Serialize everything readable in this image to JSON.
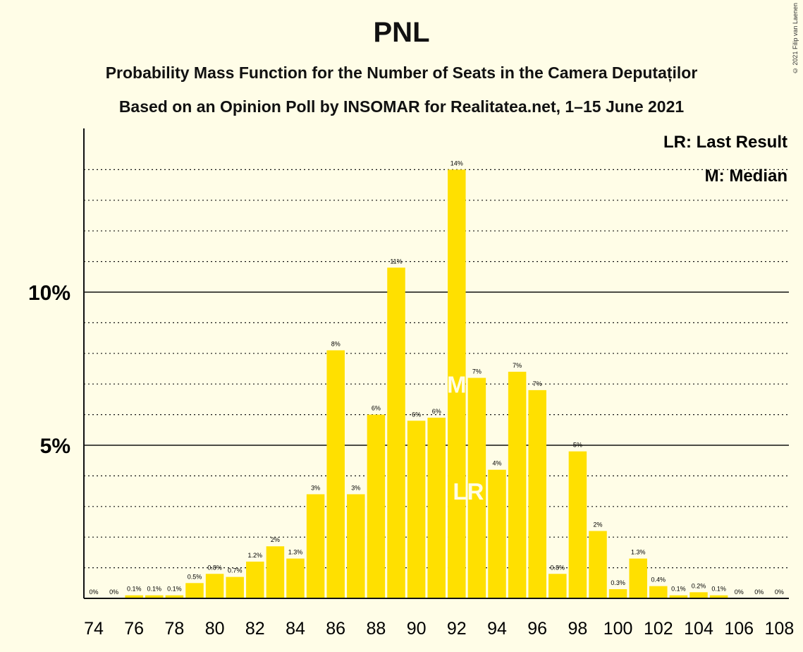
{
  "copyright": "© 2021 Filip van Laenen",
  "chart_data": {
    "type": "bar",
    "title": "PNL",
    "subtitle": "Probability Mass Function for the Number of Seats in the Camera Deputaților",
    "subtitle2": "Based on an Opinion Poll by INSOMAR for Realitatea.net, 1–15 June 2021",
    "legend": [
      "LR: Last Result",
      "M: Median"
    ],
    "legend_position": "top-right",
    "bar_color": "#FFE000",
    "x": [
      74,
      75,
      76,
      77,
      78,
      79,
      80,
      81,
      82,
      83,
      84,
      85,
      86,
      87,
      88,
      89,
      90,
      91,
      92,
      93,
      94,
      95,
      96,
      97,
      98,
      99,
      100,
      101,
      102,
      103,
      104,
      105,
      106,
      107,
      108
    ],
    "values": [
      0,
      0,
      0.1,
      0.1,
      0.1,
      0.5,
      0.8,
      0.7,
      1.2,
      1.7,
      1.3,
      3.4,
      8.1,
      3.4,
      6.0,
      10.8,
      5.8,
      5.9,
      14.0,
      7.2,
      4.2,
      7.4,
      6.8,
      0.8,
      4.8,
      2.2,
      0.3,
      1.3,
      0.4,
      0.1,
      0.2,
      0.1,
      0,
      0,
      0
    ],
    "labels": [
      "0%",
      "0%",
      "0.1%",
      "0.1%",
      "0.1%",
      "0.5%",
      "0.8%",
      "0.7%",
      "1.2%",
      "2%",
      "1.3%",
      "3%",
      "8%",
      "3%",
      "6%",
      "11%",
      "6%",
      "6%",
      "14%",
      "7%",
      "4%",
      "7%",
      "7%",
      "0.8%",
      "5%",
      "2%",
      "0.3%",
      "1.3%",
      "0.4%",
      "0.1%",
      "0.2%",
      "0.1%",
      "0%",
      "0%",
      "0%"
    ],
    "xticks": [
      74,
      76,
      78,
      80,
      82,
      84,
      86,
      88,
      90,
      92,
      94,
      96,
      98,
      100,
      102,
      104,
      106,
      108
    ],
    "yticks": [
      {
        "value": 5,
        "label": "5%"
      },
      {
        "value": 10,
        "label": "10%"
      }
    ],
    "minor_gridlines_every": 1,
    "ylim": [
      0,
      15
    ],
    "median_seat": 92,
    "median_label": "M",
    "last_result_seat": 93,
    "last_result_label": "LR"
  }
}
